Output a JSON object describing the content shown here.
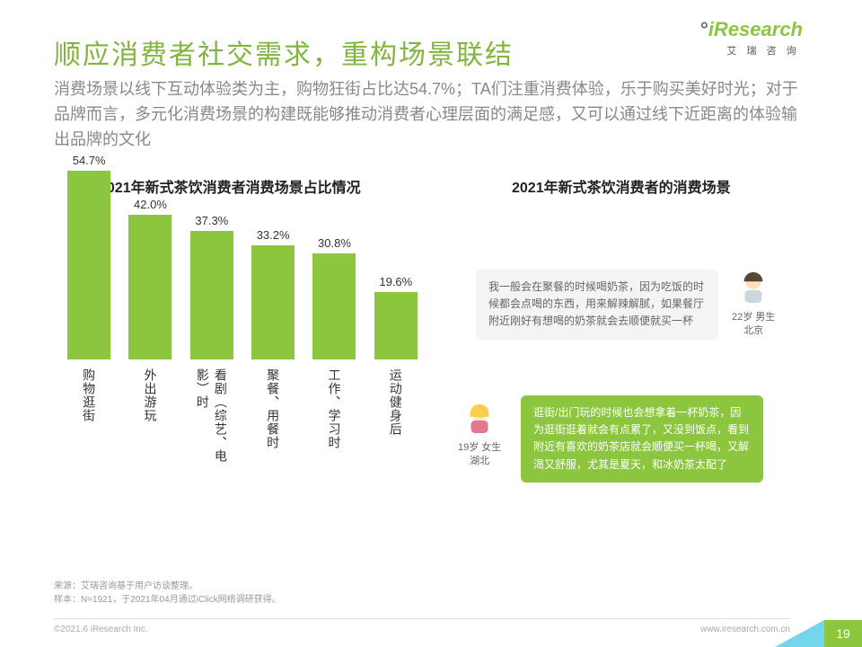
{
  "logo": {
    "brand": "iResearch",
    "sub": "艾 瑞 咨 询"
  },
  "title": "顺应消费者社交需求，重构场景联结",
  "subtitle": "消费场景以线下互动体验类为主，购物狂街占比达54.7%；TA们注重消费体验，乐于购买美好时光；对于品牌而言，多元化消费场景的构建既能够推动消费者心理层面的满足感，又可以通过线下近距离的体验输出品牌的文化",
  "chart": {
    "type": "bar",
    "title_left": "2021年新式茶饮消费者消费场景占比情况",
    "title_right": "2021年新式茶饮消费者的消费场景",
    "categories": [
      "购物逛街",
      "外出游玩",
      "看剧/综艺/电影时",
      "聚餐/用餐时",
      "工作/学习时",
      "运动健身后"
    ],
    "cat_vertical": [
      "购物逛街",
      "外出游玩",
      "看剧︵综艺︑电影︶时",
      "聚餐︑用餐时",
      "工作︑学习时",
      "运动健身后"
    ],
    "values": [
      54.7,
      42.0,
      37.3,
      33.2,
      30.8,
      19.6
    ],
    "value_labels": [
      "54.7%",
      "42.0%",
      "37.3%",
      "33.2%",
      "30.8%",
      "19.6%"
    ],
    "bar_color": "#8cc63f",
    "ylim": [
      0,
      60
    ],
    "label_fontsize": 13,
    "value_fontsize": 13,
    "background": "#ffffff"
  },
  "quotes": {
    "q1": {
      "text": "我一般会在聚餐的时候喝奶茶，因为吃饭的时候都会点喝的东西，用来解辣解腻，如果餐厅附近刚好有想喝的奶茶就会去顺便就买一杯",
      "who_line1": "22岁 男生",
      "who_line2": "北京"
    },
    "q2": {
      "text": "逛街/出门玩的时候也会想拿着一杯奶茶，因为逛街逛着就会有点累了，又没到饭点，看到附近有喜欢的奶茶店就会顺便买一杯喝，又解渴又舒服，尤其是夏天，和冰奶茶太配了",
      "who_line1": "19岁 女生",
      "who_line2": "湖北"
    }
  },
  "source": {
    "line1": "来源：艾瑞咨询基于用户访谈整理。",
    "line2": "样本：N=1921，于2021年04月通过iClick网络调研获得。"
  },
  "copyright": "©2021.6 iResearch Inc.",
  "website": "www.iresearch.com.cn",
  "page": "19",
  "colors": {
    "brand": "#8cc63f",
    "text_muted": "#888",
    "quote_grey": "#f4f4f4"
  }
}
